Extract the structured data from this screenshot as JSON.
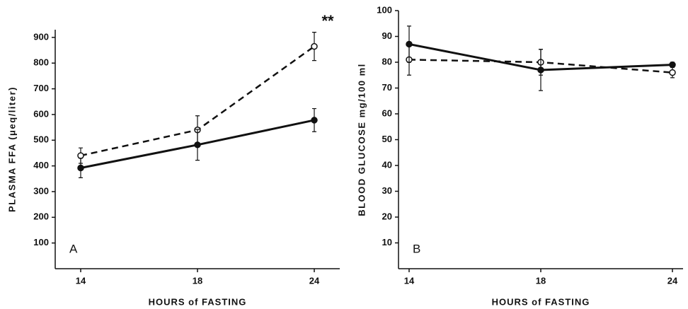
{
  "chart_data": [
    {
      "type": "line",
      "ylabel": "PLASMA FFA (μeq/liter)",
      "xlabel": "HOURS of FASTING",
      "panel": "A",
      "annotation": "**",
      "categories": [
        "14",
        "18",
        "24"
      ],
      "ylim": [
        0,
        930
      ],
      "yticks": [
        100,
        200,
        300,
        400,
        500,
        600,
        700,
        800,
        900
      ],
      "series": [
        {
          "color": "#111111",
          "dashed": true,
          "marker": "open",
          "values": [
            440,
            540,
            865
          ],
          "errors": [
            30,
            55,
            55
          ]
        },
        {
          "color": "#111111",
          "dashed": false,
          "marker": "filled",
          "values": [
            392,
            482,
            578
          ],
          "errors": [
            38,
            60,
            45
          ]
        }
      ]
    },
    {
      "type": "line",
      "ylabel": "BLOOD GLUCOSE mg/100 ml",
      "xlabel": "HOURS of FASTING",
      "panel": "B",
      "categories": [
        "14",
        "18",
        "24"
      ],
      "ylim": [
        0,
        100
      ],
      "yticks": [
        10,
        20,
        30,
        40,
        50,
        60,
        70,
        80,
        90,
        100
      ],
      "series": [
        {
          "color": "#111111",
          "dashed": true,
          "marker": "open",
          "values": [
            81,
            80,
            76
          ],
          "errors": [
            6,
            5,
            2
          ]
        },
        {
          "color": "#111111",
          "dashed": false,
          "marker": "filled",
          "values": [
            87,
            77,
            79
          ],
          "errors": [
            7,
            8,
            1
          ]
        }
      ]
    }
  ]
}
